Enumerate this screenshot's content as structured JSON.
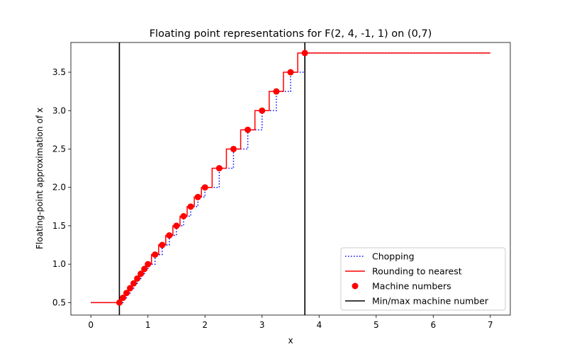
{
  "chart_data": {
    "type": "line",
    "title": "Floating point representations for F(2, 4, -1, 1) on (0,7)",
    "xlabel": "x",
    "ylabel": "Floating-point approximation of x",
    "xlim": [
      -0.35,
      7.35
    ],
    "ylim": [
      0.3375,
      3.8875
    ],
    "xticks": [
      0,
      1,
      2,
      3,
      4,
      5,
      6,
      7
    ],
    "yticks": [
      0.5,
      1.0,
      1.5,
      2.0,
      2.5,
      3.0,
      3.5
    ],
    "ytick_labels": [
      "0.5",
      "1.0",
      "1.5",
      "2.0",
      "2.5",
      "3.0",
      "3.5"
    ],
    "x_range": [
      0,
      7
    ],
    "machine_numbers": [
      0.5,
      0.5625,
      0.625,
      0.6875,
      0.75,
      0.8125,
      0.875,
      0.9375,
      1.0,
      1.125,
      1.25,
      1.375,
      1.5,
      1.625,
      1.75,
      1.875,
      2.0,
      2.25,
      2.5,
      2.75,
      3.0,
      3.25,
      3.5,
      3.75
    ],
    "min_machine_number": 0.5,
    "max_machine_number": 3.75,
    "series": [
      {
        "name": "Chopping",
        "color": "#0000ff",
        "style": "dotted",
        "rule": "chop"
      },
      {
        "name": "Rounding to nearest",
        "color": "#ff0000",
        "style": "solid",
        "rule": "round"
      },
      {
        "name": "Machine numbers",
        "color": "#ff0000",
        "style": "markers"
      },
      {
        "name": "Min/max machine number",
        "color": "#000000",
        "style": "vline"
      }
    ],
    "legend_position": "lower-right",
    "grid": false
  }
}
